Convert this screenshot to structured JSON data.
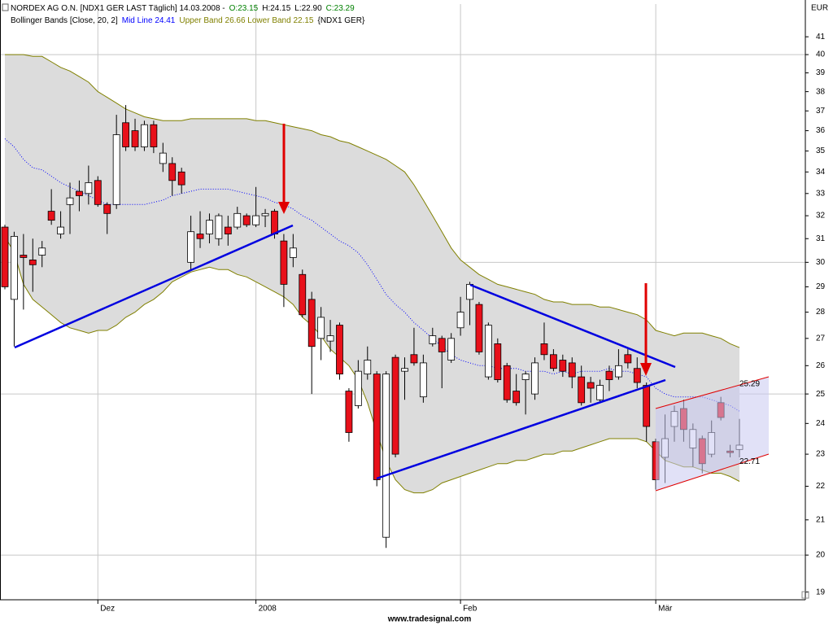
{
  "chart_data": {
    "type": "candlestick",
    "title_parts": [
      {
        "text": "NORDEX AG O.N. [NDX1 GER LAST Täglich] 14.03.2008 -",
        "color": "#000000"
      },
      {
        "text": "O:23.15",
        "color": "#008000"
      },
      {
        "text": "H:24.15",
        "color": "#000000"
      },
      {
        "text": "L:22.90",
        "color": "#000000"
      },
      {
        "text": "C:23.29",
        "color": "#008000"
      }
    ],
    "legend_parts": [
      {
        "text": "Bollinger Bands [Close, 20, 2]",
        "color": "#000000"
      },
      {
        "text": "Mid Line 24.41",
        "color": "#0000ff"
      },
      {
        "text": "Upper Band 26.66 Lower Band 22.15",
        "color": "#808000"
      },
      {
        "text": "{NDX1 GER}",
        "color": "#000000"
      }
    ],
    "y_unit": "EUR",
    "footer": "www.tradesignal.com",
    "log_scale": true,
    "up_color": "#ffffff",
    "down_color": "#e8101a",
    "band_fill": "#dcdcdc",
    "ylim": [
      18.8,
      42.9
    ],
    "yticks": [
      19,
      20,
      21,
      22,
      23,
      24,
      25,
      26,
      27,
      28,
      29,
      30,
      31,
      32,
      33,
      34,
      35,
      36,
      37,
      38,
      39,
      40,
      41
    ],
    "ygrid": [
      20,
      25,
      30,
      40
    ],
    "categories": [
      null,
      null,
      null,
      null,
      null,
      null,
      null,
      null,
      null,
      null,
      "Dez",
      null,
      null,
      null,
      null,
      null,
      null,
      null,
      null,
      null,
      null,
      null,
      null,
      null,
      null,
      null,
      null,
      "2008",
      null,
      null,
      null,
      null,
      null,
      null,
      null,
      null,
      null,
      null,
      null,
      null,
      null,
      null,
      null,
      null,
      null,
      null,
      null,
      null,
      null,
      "Feb",
      null,
      null,
      null,
      null,
      null,
      null,
      null,
      null,
      null,
      null,
      null,
      null,
      null,
      null,
      null,
      null,
      null,
      null,
      null,
      null,
      "Mär",
      null,
      null,
      null,
      null,
      null,
      null,
      null,
      null,
      null
    ],
    "open": [
      31.5,
      28.5,
      30.3,
      30.1,
      30.3,
      32.2,
      31.2,
      32.5,
      33.1,
      33.0,
      33.6,
      32.5,
      32.5,
      36.4,
      36.0,
      35.2,
      36.3,
      34.4,
      34.4,
      34.0,
      30.0,
      31.2,
      31.2,
      31.0,
      31.5,
      31.5,
      32.0,
      31.6,
      32.0,
      32.2,
      30.9,
      30.2,
      29.5,
      28.5,
      27.0,
      26.9,
      27.5,
      25.1,
      24.6,
      25.7,
      25.7,
      20.5,
      26.3,
      25.8,
      26.4,
      24.9,
      26.8,
      27.0,
      26.2,
      27.4,
      28.5,
      28.3,
      25.6,
      26.8,
      26.0,
      25.1,
      25.5,
      25.0,
      26.8,
      26.4,
      26.2,
      26.1,
      25.6,
      25.4,
      24.8,
      25.8,
      25.6,
      26.4,
      25.9,
      25.3,
      23.4,
      22.9,
      23.9,
      24.5,
      23.2,
      23.5,
      23.0,
      24.7,
      23.1,
      23.15
    ],
    "high": [
      31.6,
      31.3,
      31.2,
      31.0,
      30.9,
      33.2,
      32.2,
      33.5,
      33.6,
      34.3,
      33.8,
      32.6,
      36.8,
      37.3,
      36.6,
      36.5,
      36.5,
      35.4,
      34.7,
      34.2,
      32.0,
      32.2,
      32.1,
      32.1,
      32.0,
      32.4,
      32.1,
      33.3,
      32.3,
      32.3,
      31.2,
      31.2,
      29.7,
      28.8,
      28.2,
      27.7,
      27.6,
      25.2,
      26.2,
      26.7,
      25.8,
      25.8,
      26.4,
      26.3,
      27.4,
      26.4,
      27.4,
      27.1,
      27.2,
      28.6,
      29.2,
      28.4,
      27.6,
      27.0,
      26.1,
      25.7,
      25.8,
      26.3,
      27.6,
      26.6,
      26.4,
      26.3,
      26.0,
      25.6,
      25.5,
      26.0,
      26.6,
      26.6,
      26.3,
      25.4,
      23.5,
      24.3,
      24.6,
      24.8,
      24.0,
      23.6,
      24.1,
      24.9,
      23.3,
      24.15
    ],
    "low": [
      28.9,
      26.7,
      28.1,
      28.8,
      29.8,
      31.6,
      31.0,
      31.2,
      32.2,
      32.5,
      32.4,
      31.2,
      32.3,
      35.0,
      35.0,
      35.0,
      34.9,
      34.0,
      32.9,
      33.0,
      29.7,
      30.6,
      30.8,
      30.7,
      30.7,
      31.4,
      31.5,
      31.5,
      31.5,
      31.0,
      28.2,
      29.8,
      27.8,
      25.0,
      26.2,
      26.5,
      25.5,
      23.4,
      24.5,
      25.5,
      22.0,
      20.2,
      22.9,
      24.8,
      26.0,
      24.7,
      26.7,
      25.2,
      26.1,
      27.1,
      27.5,
      26.4,
      25.5,
      25.4,
      24.7,
      24.6,
      24.3,
      24.8,
      26.2,
      25.8,
      25.6,
      25.2,
      24.6,
      24.7,
      24.7,
      25.1,
      25.5,
      25.9,
      25.2,
      23.4,
      21.9,
      22.1,
      23.4,
      23.4,
      22.6,
      22.4,
      22.9,
      24.1,
      22.9,
      22.9
    ],
    "close": [
      29.0,
      31.1,
      30.2,
      29.9,
      30.6,
      31.8,
      31.5,
      32.8,
      32.9,
      33.5,
      32.5,
      32.1,
      35.8,
      35.2,
      35.2,
      36.3,
      35.2,
      34.9,
      33.6,
      33.4,
      31.3,
      31.0,
      31.8,
      32.0,
      31.2,
      32.1,
      31.6,
      32.0,
      32.1,
      31.2,
      29.1,
      30.6,
      27.9,
      26.7,
      27.8,
      27.1,
      25.7,
      23.7,
      25.8,
      26.2,
      22.2,
      25.7,
      23.0,
      25.9,
      26.1,
      26.1,
      27.1,
      26.5,
      27.0,
      28.0,
      29.1,
      26.5,
      27.5,
      25.5,
      24.8,
      24.7,
      25.7,
      26.1,
      26.4,
      25.9,
      25.8,
      25.6,
      24.7,
      25.2,
      25.3,
      25.5,
      26.0,
      26.1,
      25.4,
      23.9,
      22.2,
      23.5,
      24.4,
      23.8,
      23.8,
      22.7,
      23.7,
      24.2,
      23.05,
      23.29
    ],
    "bands": [
      {
        "color": "#808000",
        "values": [
          40.0,
          40.0,
          40.0,
          39.9,
          39.9,
          39.6,
          39.3,
          39.1,
          38.8,
          38.5,
          38.0,
          37.7,
          37.4,
          37.1,
          36.9,
          36.7,
          36.6,
          36.5,
          36.5,
          36.5,
          36.6,
          36.6,
          36.6,
          36.6,
          36.6,
          36.6,
          36.6,
          36.5,
          36.5,
          36.4,
          36.3,
          36.2,
          36.1,
          36.0,
          35.8,
          35.7,
          35.5,
          35.4,
          35.2,
          35.0,
          34.8,
          34.6,
          34.3,
          34.0,
          33.4,
          32.7,
          32.0,
          31.3,
          30.6,
          30.1,
          29.8,
          29.5,
          29.3,
          29.1,
          29.0,
          28.9,
          28.8,
          28.7,
          28.5,
          28.4,
          28.4,
          28.3,
          28.3,
          28.3,
          28.2,
          28.2,
          28.1,
          28.0,
          27.9,
          27.7,
          27.3,
          27.2,
          27.1,
          27.2,
          27.2,
          27.2,
          27.1,
          27.0,
          26.8,
          26.66
        ]
      },
      {
        "color": "#808000",
        "values": [
          31.1,
          30.4,
          29.1,
          28.5,
          28.2,
          27.9,
          27.6,
          27.4,
          27.3,
          27.2,
          27.3,
          27.3,
          27.5,
          27.8,
          28.0,
          28.3,
          28.5,
          28.8,
          29.2,
          29.4,
          29.6,
          29.7,
          29.8,
          29.7,
          29.7,
          29.5,
          29.4,
          29.2,
          29.0,
          28.8,
          28.6,
          28.3,
          27.8,
          27.5,
          27.1,
          26.6,
          26.3,
          26.0,
          25.5,
          24.7,
          23.7,
          22.8,
          22.2,
          21.9,
          21.8,
          21.8,
          21.9,
          22.1,
          22.2,
          22.3,
          22.4,
          22.5,
          22.6,
          22.7,
          22.7,
          22.8,
          22.8,
          22.9,
          23.0,
          23.0,
          23.1,
          23.1,
          23.2,
          23.3,
          23.4,
          23.5,
          23.5,
          23.5,
          23.5,
          23.4,
          23.1,
          22.8,
          22.7,
          22.6,
          22.6,
          22.5,
          22.4,
          22.4,
          22.3,
          22.15
        ]
      },
      {
        "color": "#0000ff",
        "dotted": true,
        "values": [
          35.6,
          35.2,
          34.6,
          34.2,
          34.1,
          33.8,
          33.5,
          33.3,
          33.1,
          32.9,
          32.7,
          32.5,
          32.5,
          32.5,
          32.5,
          32.5,
          32.6,
          32.7,
          32.9,
          33.0,
          33.1,
          33.2,
          33.2,
          33.2,
          33.2,
          33.1,
          33.0,
          32.9,
          32.8,
          32.6,
          32.5,
          32.3,
          32.0,
          31.8,
          31.5,
          31.2,
          30.9,
          30.7,
          30.4,
          29.9,
          29.3,
          28.7,
          28.3,
          28.0,
          27.6,
          27.3,
          27.0,
          26.7,
          26.4,
          26.2,
          26.1,
          26.0,
          26.0,
          25.9,
          25.9,
          25.9,
          25.8,
          25.8,
          25.8,
          25.7,
          25.8,
          25.7,
          25.8,
          25.8,
          25.8,
          25.9,
          25.8,
          25.8,
          25.7,
          25.6,
          25.2,
          25.0,
          24.9,
          24.9,
          24.9,
          24.9,
          24.8,
          24.7,
          24.6,
          24.41
        ]
      }
    ],
    "channel_labels": [
      {
        "value": 25.29,
        "color": "#e00000"
      },
      {
        "value": 22.71,
        "color": "#e00000"
      }
    ]
  }
}
